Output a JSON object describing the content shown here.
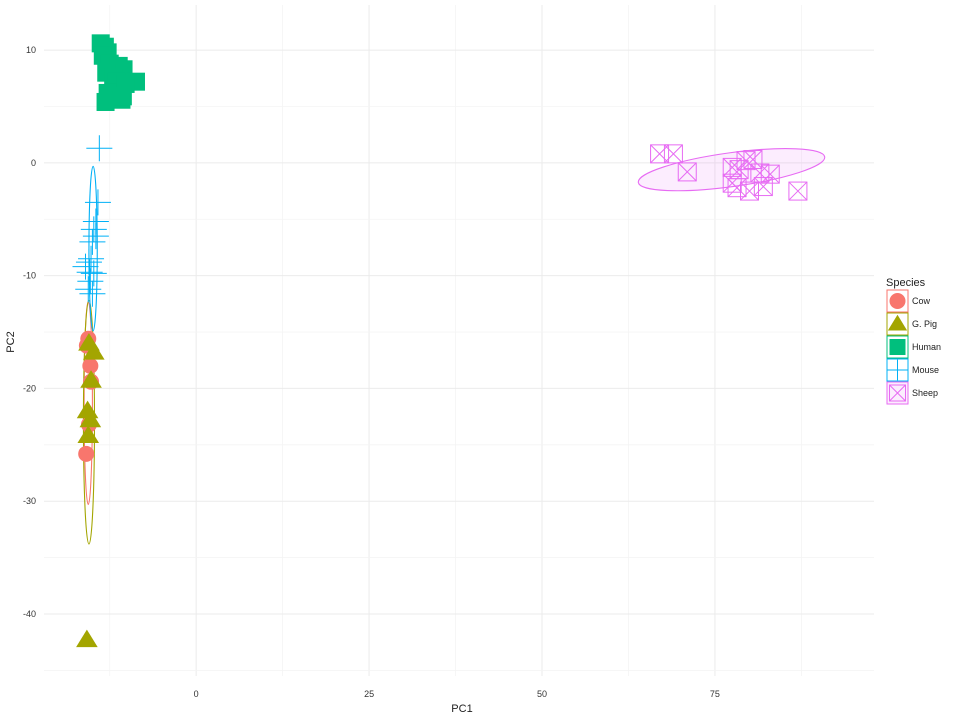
{
  "chart_data": {
    "type": "scatter",
    "title": "",
    "xlabel": "PC1",
    "ylabel": "PC2",
    "xlim": [
      -22,
      98
    ],
    "ylim": [
      -45.5,
      14
    ],
    "xticks": [
      0,
      25,
      50,
      75
    ],
    "yticks": [
      10,
      0,
      -10,
      -20,
      -30,
      -40
    ],
    "grid": true,
    "legend": {
      "title": "Species",
      "placement": "right"
    },
    "series": [
      {
        "name": "Cow",
        "color": "#F8766D",
        "shape": "circle",
        "points": [
          [
            -15.6,
            -15.6
          ],
          [
            -15.8,
            -16.2
          ],
          [
            -15.3,
            -18.0
          ],
          [
            -15.2,
            -19.4
          ],
          [
            -15.5,
            -23.2
          ],
          [
            -15.9,
            -25.8
          ]
        ],
        "ellipse": {
          "cx": -15.6,
          "cy": -21.3,
          "rx": 0.6,
          "ry": 9.0,
          "angle": 0
        }
      },
      {
        "name": "G. Pig",
        "color": "#A3A500",
        "shape": "triangle",
        "points": [
          [
            -15.5,
            -16.0
          ],
          [
            -14.8,
            -16.8
          ],
          [
            -15.2,
            -19.3
          ],
          [
            -15.7,
            -22.0
          ],
          [
            -15.3,
            -22.8
          ],
          [
            -15.6,
            -24.2
          ],
          [
            -15.8,
            -42.3
          ]
        ],
        "ellipse": {
          "cx": -15.5,
          "cy": -23.0,
          "rx": 0.8,
          "ry": 10.8,
          "angle": 0
        }
      },
      {
        "name": "Human",
        "color": "#00BF7D",
        "shape": "square",
        "points": [
          [
            -13.8,
            10.6
          ],
          [
            -13.2,
            10.3
          ],
          [
            -12.8,
            9.8
          ],
          [
            -13.5,
            9.5
          ],
          [
            -12.5,
            8.8
          ],
          [
            -11.2,
            8.6
          ],
          [
            -10.5,
            8.3
          ],
          [
            -13.0,
            8.0
          ],
          [
            -12.0,
            7.6
          ],
          [
            -11.5,
            7.2
          ],
          [
            -8.7,
            7.2
          ],
          [
            -10.2,
            7.0
          ],
          [
            -12.8,
            6.2
          ],
          [
            -10.8,
            5.6
          ],
          [
            -13.1,
            5.4
          ],
          [
            -10.6,
            5.9
          ]
        ],
        "ellipse": null
      },
      {
        "name": "Mouse",
        "color": "#00B0F6",
        "shape": "plus",
        "points": [
          [
            -14.0,
            1.3
          ],
          [
            -14.2,
            -3.5
          ],
          [
            -14.5,
            -5.2
          ],
          [
            -14.8,
            -5.9
          ],
          [
            -14.5,
            -6.5
          ],
          [
            -15.0,
            -7.0
          ],
          [
            -15.2,
            -8.5
          ],
          [
            -15.5,
            -8.8
          ],
          [
            -16.0,
            -9.2
          ],
          [
            -15.4,
            -9.7
          ],
          [
            -14.8,
            -9.8
          ],
          [
            -15.3,
            -10.5
          ],
          [
            -15.6,
            -11.2
          ],
          [
            -15.0,
            -11.6
          ]
        ],
        "ellipse": {
          "cx": -14.9,
          "cy": -7.6,
          "rx": 0.6,
          "ry": 7.3,
          "angle": 0
        }
      },
      {
        "name": "Sheep",
        "color": "#E76BF3",
        "shape": "boxtimes",
        "points": [
          [
            67.0,
            0.8
          ],
          [
            69.0,
            0.8
          ],
          [
            71.0,
            -0.8
          ],
          [
            77.5,
            -0.4
          ],
          [
            78.5,
            -0.6
          ],
          [
            79.5,
            0.2
          ],
          [
            80.5,
            0.3
          ],
          [
            81.5,
            -0.9
          ],
          [
            83.0,
            -1.0
          ],
          [
            77.5,
            -1.8
          ],
          [
            78.2,
            -2.2
          ],
          [
            80.0,
            -2.5
          ],
          [
            82.0,
            -2.1
          ],
          [
            87.0,
            -2.5
          ]
        ],
        "ellipse": {
          "cx": 77.4,
          "cy": -0.6,
          "rx": 13.6,
          "ry": 1.5,
          "angle": -7.8
        }
      }
    ]
  }
}
